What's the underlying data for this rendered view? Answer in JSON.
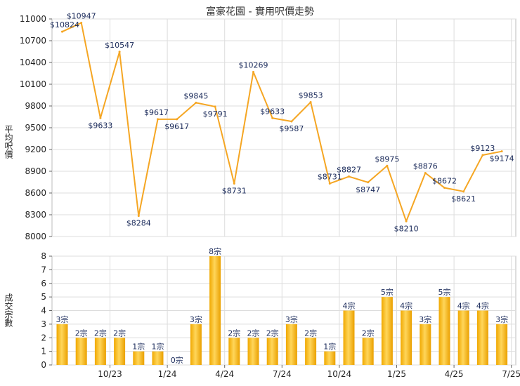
{
  "chart_data": [
    {
      "type": "line",
      "title": "富豪花園 - 實用呎價走勢",
      "ylabel": "平均呎價",
      "ylim": [
        8000,
        11000
      ],
      "yticks": [
        8000,
        8300,
        8600,
        8900,
        9200,
        9500,
        9800,
        10100,
        10400,
        10700,
        11000
      ],
      "color": "#f5a623",
      "grid": true,
      "values": [
        10824,
        10947,
        9633,
        10547,
        8284,
        9617,
        9617,
        9845,
        9791,
        8731,
        10269,
        9633,
        9587,
        9853,
        8731,
        8827,
        8747,
        8975,
        8210,
        8876,
        8672,
        8621,
        9123,
        9174
      ],
      "labels": [
        "$10824",
        "$10947",
        "$9633",
        "$10547",
        "$8284",
        "$9617",
        "$9617",
        "$9845",
        "$9791",
        "$8731",
        "$10269",
        "$9633",
        "$9587",
        "$9853",
        "$8731",
        "$8827",
        "$8747",
        "$8975",
        "$8210",
        "$8876",
        "$8672",
        "$8621",
        "$9123",
        "$9174"
      ]
    },
    {
      "type": "bar",
      "ylabel": "成交宗數",
      "ylim": [
        0,
        8
      ],
      "yticks": [
        "0",
        "1",
        "2",
        "3",
        "4",
        "5",
        "6",
        "7",
        "8"
      ],
      "color": "#f5b400",
      "grid": true,
      "values": [
        3,
        2,
        2,
        2,
        1,
        1,
        0,
        3,
        8,
        2,
        2,
        2,
        3,
        2,
        1,
        4,
        2,
        5,
        4,
        3,
        5,
        4,
        4,
        3
      ],
      "labels": [
        "3宗",
        "2宗",
        "2宗",
        "2宗",
        "1宗",
        "1宗",
        "0宗",
        "3宗",
        "8宗",
        "2宗",
        "2宗",
        "2宗",
        "3宗",
        "2宗",
        "1宗",
        "4宗",
        "2宗",
        "5宗",
        "4宗",
        "3宗",
        "5宗",
        "4宗",
        "4宗",
        "3宗"
      ],
      "x_tick_labels": [
        {
          "index": 2,
          "label": "10/23"
        },
        {
          "index": 5,
          "label": "1/24"
        },
        {
          "index": 8,
          "label": "4/24"
        },
        {
          "index": 11,
          "label": "7/24"
        },
        {
          "index": 14,
          "label": "10/24"
        },
        {
          "index": 17,
          "label": "1/25"
        },
        {
          "index": 20,
          "label": "4/25"
        },
        {
          "index": 23,
          "label": "7/25"
        }
      ]
    }
  ]
}
